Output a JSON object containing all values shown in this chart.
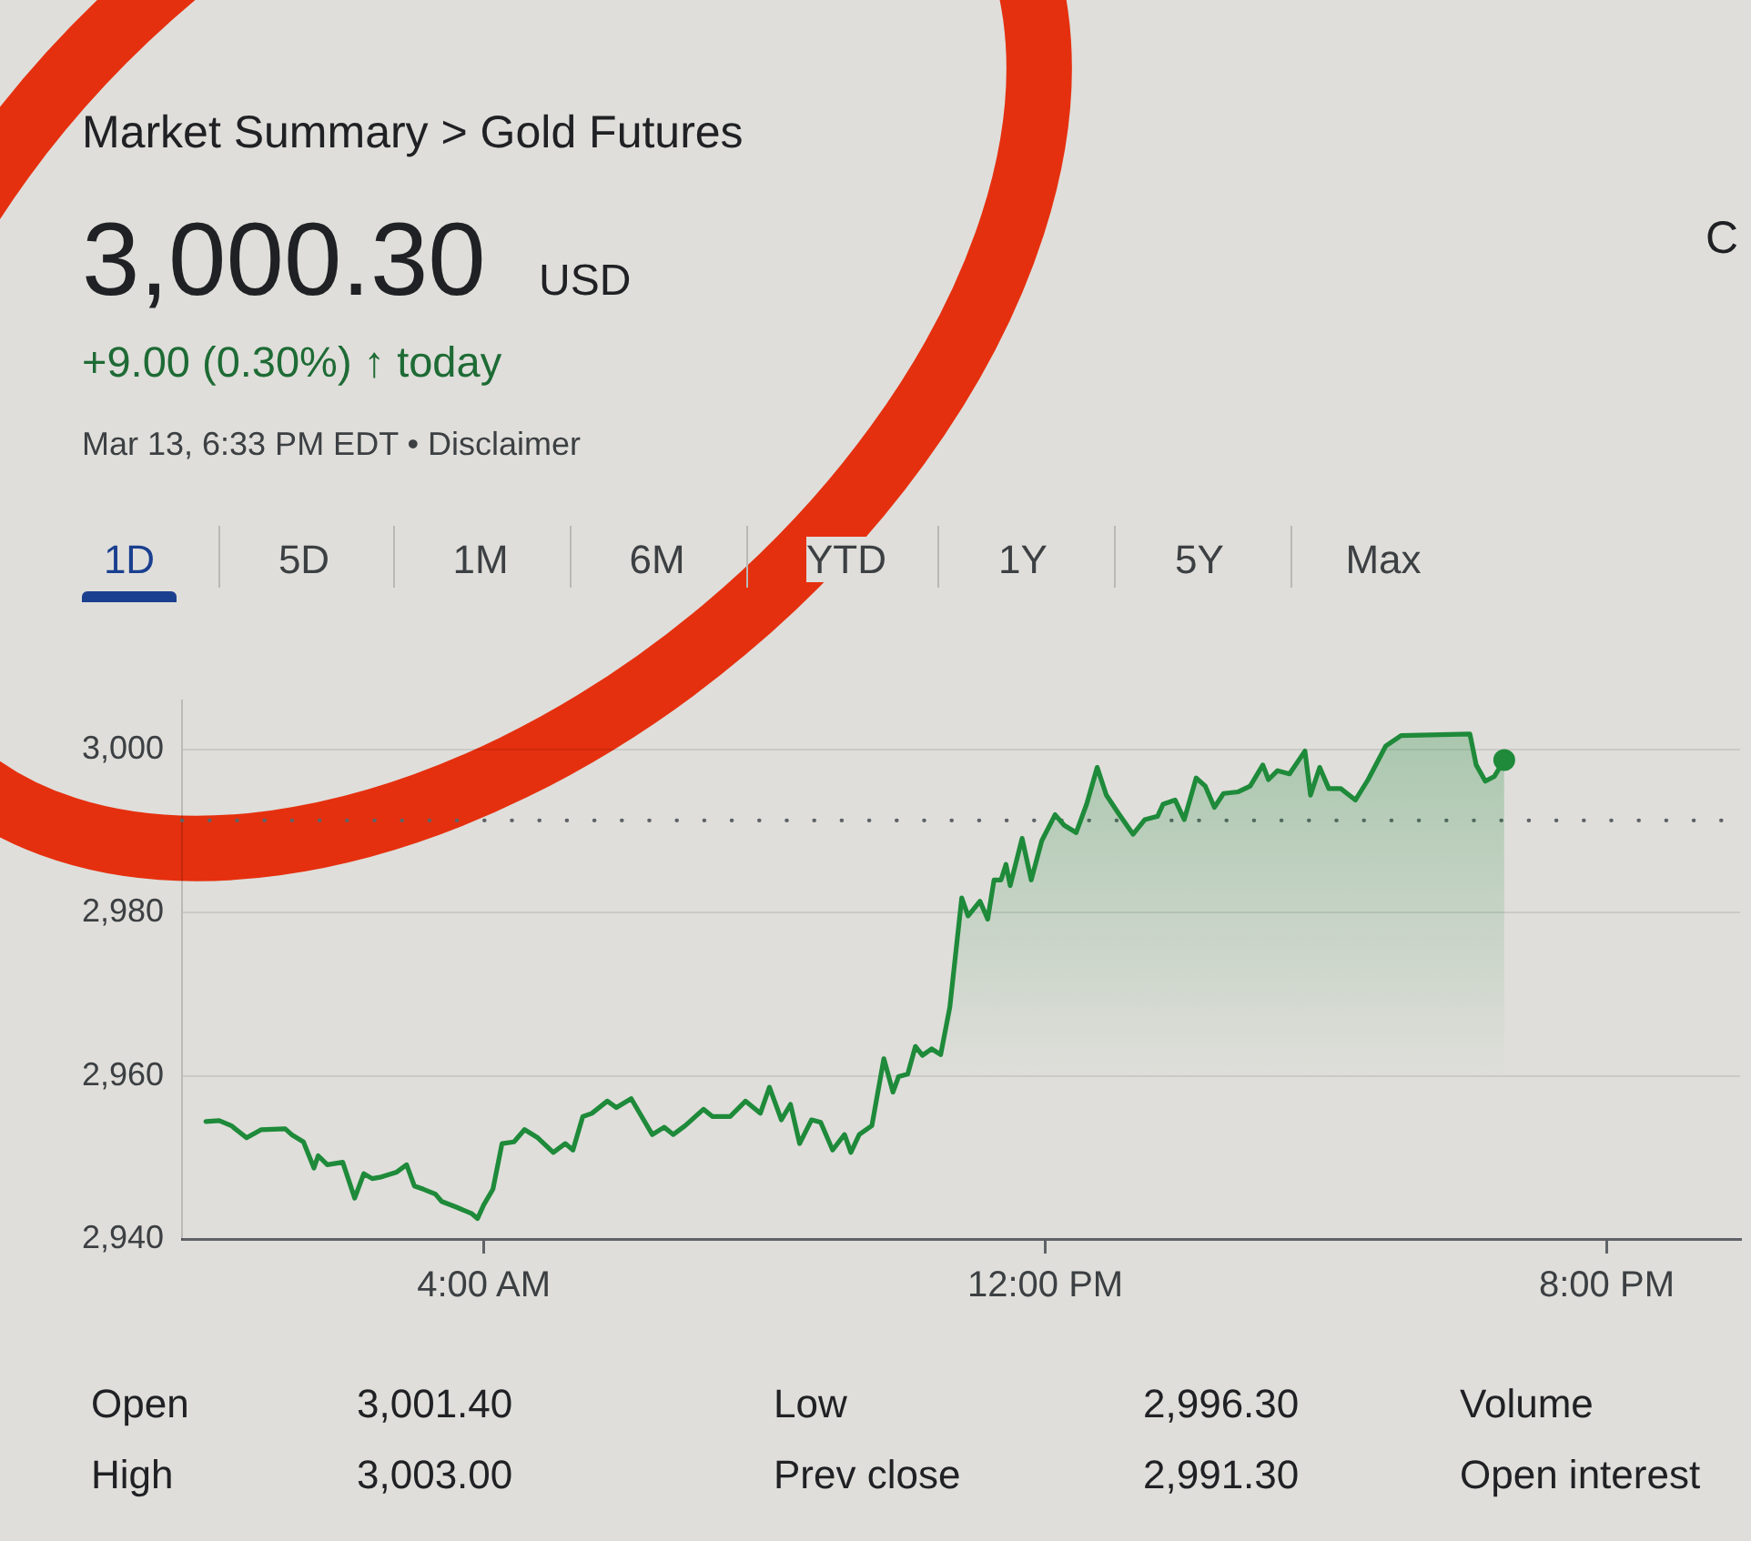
{
  "chart_data": {
    "type": "area",
    "title": "Market Summary > Gold Futures",
    "annotations": [
      "3,000.30",
      "USD",
      "+9.00 (0.30%) ↑ today",
      "Mar 13, 6:33 PM EDT • Disclaimer",
      "C",
      "1D",
      "5D",
      "1M",
      "6M",
      "YTD",
      "1Y",
      "5Y",
      "Max",
      "Open",
      "3,001.40",
      "Low",
      "2,996.30",
      "Volume",
      "High",
      "3,003.00",
      "Prev close",
      "2,991.30",
      "Open interest"
    ],
    "series": [
      {
        "color": "#1e8a3a",
        "x": [
          0.04,
          0.23,
          0.4,
          0.62,
          0.83,
          1.17,
          1.26,
          1.43,
          1.58,
          1.64,
          1.77,
          1.99,
          2.16,
          2.29,
          2.41,
          2.54,
          2.76,
          2.9,
          3.01,
          3.14,
          3.31,
          3.4,
          3.61,
          3.83,
          3.91,
          4.0,
          4.13,
          4.26,
          4.43,
          4.58,
          4.77,
          4.99,
          5.16,
          5.27,
          5.41,
          5.54,
          5.76,
          5.89,
          6.1,
          6.4,
          6.57,
          6.7,
          6.87,
          7.13,
          7.26,
          7.51,
          7.73,
          7.94,
          8.07,
          8.24,
          8.37,
          8.5,
          8.67,
          8.8,
          8.97,
          9.14,
          9.23,
          9.35,
          9.53,
          9.7,
          9.83,
          9.91,
          10.04,
          10.15,
          10.25,
          10.38,
          10.51,
          10.64,
          10.81,
          10.9,
          11.07,
          11.18,
          11.27,
          11.37,
          11.44,
          11.5,
          11.67,
          11.8,
          11.95,
          12.14,
          12.27,
          12.44,
          12.59,
          12.74,
          12.87,
          13.04,
          13.25,
          13.42,
          13.6,
          13.68,
          13.85,
          13.98,
          14.15,
          14.28,
          14.41,
          14.54,
          14.75,
          14.92,
          15.1,
          15.18,
          15.31,
          15.48,
          15.7,
          15.78,
          15.91,
          16.04,
          16.21,
          16.42,
          16.6,
          16.85,
          17.07,
          18.05,
          18.14,
          18.27,
          18.4,
          18.54
        ],
        "values": [
          2954.4,
          2954.5,
          2953.9,
          2952.4,
          2953.4,
          2953.5,
          2952.8,
          2951.9,
          2948.7,
          2950.2,
          2949.1,
          2949.4,
          2945.0,
          2948.0,
          2947.4,
          2947.6,
          2948.2,
          2949.1,
          2946.5,
          2946.1,
          2945.5,
          2944.6,
          2943.9,
          2943.1,
          2942.5,
          2944.2,
          2946.1,
          2951.7,
          2951.9,
          2953.4,
          2952.4,
          2950.6,
          2951.7,
          2950.9,
          2955.0,
          2955.4,
          2956.9,
          2956.1,
          2957.2,
          2952.8,
          2953.7,
          2952.8,
          2953.9,
          2955.9,
          2955.0,
          2955.0,
          2956.9,
          2955.4,
          2958.6,
          2954.6,
          2956.5,
          2951.7,
          2954.6,
          2954.3,
          2950.9,
          2952.8,
          2950.6,
          2952.8,
          2953.9,
          2962.1,
          2958.0,
          2959.9,
          2960.2,
          2963.6,
          2962.5,
          2963.3,
          2962.6,
          2968.4,
          2981.8,
          2979.6,
          2981.4,
          2979.2,
          2984.0,
          2984.0,
          2985.9,
          2983.3,
          2989.1,
          2984.0,
          2988.8,
          2992.0,
          2990.7,
          2989.8,
          2993.3,
          2997.8,
          2994.4,
          2992.2,
          2989.6,
          2991.4,
          2991.8,
          2993.3,
          2993.8,
          2991.4,
          2996.5,
          2995.5,
          2992.9,
          2994.6,
          2994.8,
          2995.5,
          2998.1,
          2996.3,
          2997.4,
          2997.0,
          2999.8,
          2994.4,
          2997.8,
          2995.2,
          2995.2,
          2993.8,
          2996.3,
          3000.4,
          3001.7,
          3001.9,
          2998.1,
          2996.1,
          2996.7,
          2998.7
        ]
      },
      {
        "type": "scatter",
        "color": "#1e8a3a",
        "marker": "circle",
        "x": [
          18.54
        ],
        "values": [
          2998.7
        ]
      }
    ],
    "xlim": [
      -0.3,
      21.9
    ],
    "xticks": [
      {
        "value": 4,
        "label": "4:00 AM"
      },
      {
        "value": 12,
        "label": "12:00 PM"
      },
      {
        "value": 20,
        "label": "8:00 PM"
      }
    ],
    "ylim": [
      2940,
      3006
    ],
    "yticks": [
      {
        "value": 2940,
        "label": "2,940"
      },
      {
        "value": 2960,
        "label": "2,960"
      },
      {
        "value": 2980,
        "label": "2,980"
      },
      {
        "value": 3000,
        "label": "3,000"
      }
    ],
    "grid": "y",
    "ref_lines": [
      {
        "axis": "y",
        "value": 2991.3,
        "line_style": "dotted",
        "color": "#5f6368"
      }
    ]
  }
}
